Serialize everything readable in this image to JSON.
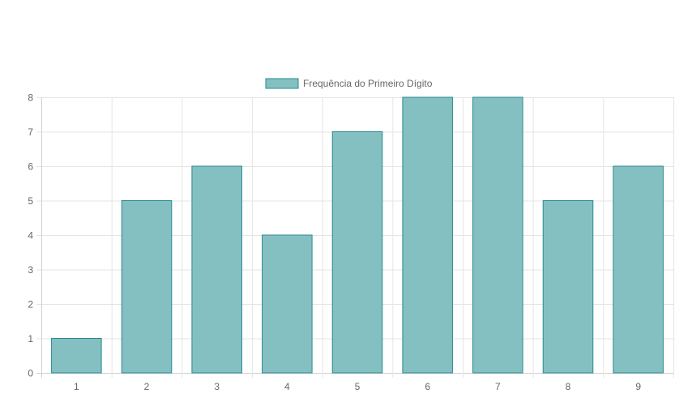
{
  "chart_data": {
    "type": "bar",
    "categories": [
      "1",
      "2",
      "3",
      "4",
      "5",
      "6",
      "7",
      "8",
      "9"
    ],
    "series": [
      {
        "name": "Frequência do Primeiro Dígito",
        "values": [
          1,
          5,
          6,
          4,
          7,
          8,
          8,
          5,
          6
        ]
      }
    ],
    "yticks": [
      0,
      1,
      2,
      3,
      4,
      5,
      6,
      7,
      8
    ],
    "ylim": [
      0,
      8
    ],
    "grid": true,
    "legend_position": "top",
    "colors": {
      "bar_fill": "#84c0c2",
      "bar_stroke": "#2a8a8c",
      "grid": "#e5e5e5",
      "axis": "#d0d0d0",
      "text": "#666666"
    }
  }
}
